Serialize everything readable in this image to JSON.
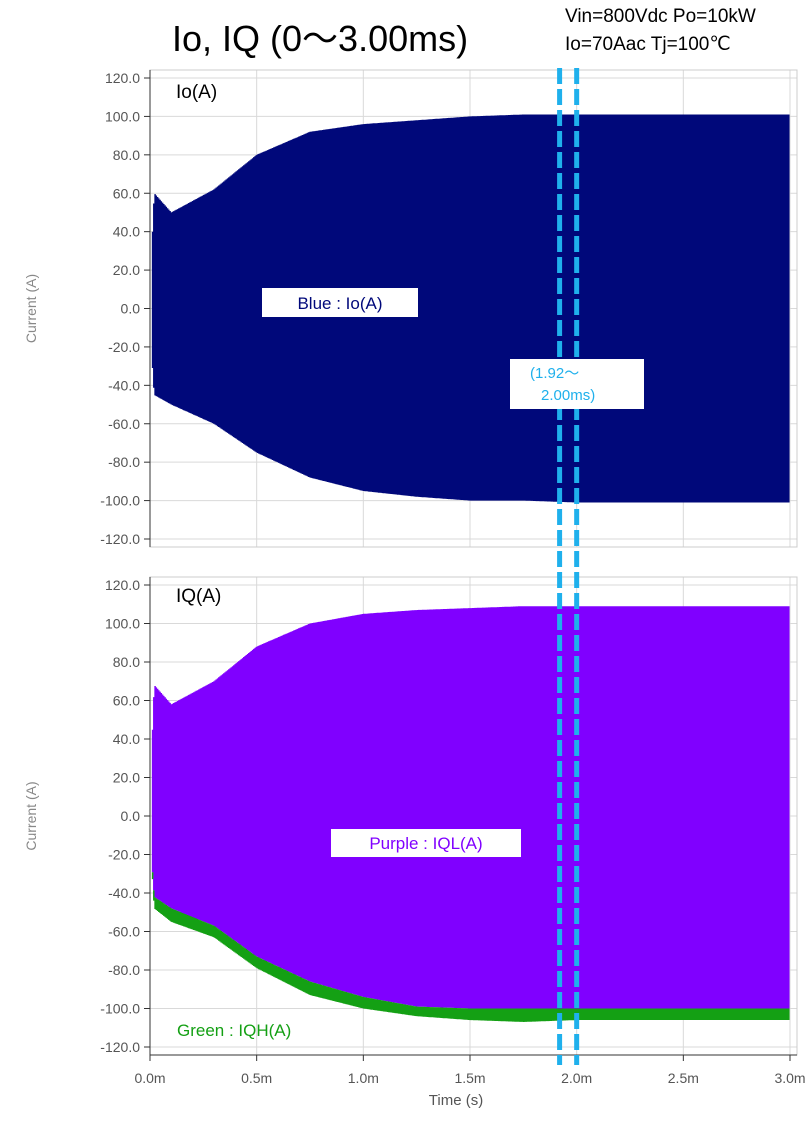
{
  "title": "Io, IQ (0～3.00ms)",
  "conditions": [
    "Vin=800Vdc Po=10kW",
    "Io=70Aac Tj=100℃"
  ],
  "highlight_window": {
    "start_ms": 1.92,
    "end_ms": 2.0,
    "label_line1": "(1.92～",
    "label_line2": "2.00ms)",
    "color": "#1fb0ec"
  },
  "colors": {
    "io": "#00087a",
    "iql": "#8000ff",
    "iqh": "#14a014",
    "axis_text": "#555555",
    "grid": "#d9d9d9"
  },
  "xlabel": "Time (s)",
  "x_ticks": [
    "0.0m",
    "0.5m",
    "1.0m",
    "1.5m",
    "2.0m",
    "2.5m",
    "3.0m"
  ],
  "chart_data": [
    {
      "type": "area",
      "title": "Io(A)",
      "ylabel": "Current (A)",
      "xlim": [
        0,
        3.0
      ],
      "ylim": [
        -120,
        120
      ],
      "y_ticks": [
        "120.0",
        "100.0",
        "80.0",
        "60.0",
        "40.0",
        "20.0",
        "0.0",
        "-20.0",
        "-40.0",
        "-60.0",
        "-80.0",
        "-100.0",
        "-120.0"
      ],
      "legend": "Blue : Io(A)",
      "series": [
        {
          "name": "Io(A)",
          "color": "#00087a",
          "x": [
            0.0,
            0.02,
            0.1,
            0.3,
            0.5,
            0.75,
            1.0,
            1.25,
            1.5,
            1.75,
            2.0,
            2.5,
            3.0
          ],
          "upper": [
            10,
            60,
            50,
            62,
            80,
            92,
            96,
            98,
            100,
            101,
            101,
            101,
            101
          ],
          "lower": [
            -10,
            -45,
            -50,
            -60,
            -75,
            -88,
            -95,
            -98,
            -100,
            -100,
            -101,
            -101,
            -101
          ]
        }
      ]
    },
    {
      "type": "area",
      "title": "IQ(A)",
      "ylabel": "Current (A)",
      "xlim": [
        0,
        3.0
      ],
      "ylim": [
        -120,
        120
      ],
      "y_ticks": [
        "120.0",
        "100.0",
        "80.0",
        "60.0",
        "40.0",
        "20.0",
        "0.0",
        "-20.0",
        "-40.0",
        "-60.0",
        "-80.0",
        "-100.0",
        "-120.0"
      ],
      "legend": [
        "Purple : IQL(A)",
        "Green : IQH(A)"
      ],
      "series": [
        {
          "name": "IQL(A)",
          "color": "#8000ff",
          "x": [
            0.0,
            0.02,
            0.1,
            0.3,
            0.5,
            0.75,
            1.0,
            1.25,
            1.5,
            1.75,
            2.0,
            2.5,
            3.0
          ],
          "upper": [
            10,
            68,
            58,
            70,
            88,
            100,
            105,
            107,
            108,
            109,
            109,
            109,
            109
          ],
          "lower": [
            -10,
            -42,
            -48,
            -57,
            -73,
            -86,
            -94,
            -99,
            -100,
            -100,
            -100,
            -100,
            -100
          ]
        },
        {
          "name": "IQH(A)",
          "color": "#14a014",
          "x": [
            0.0,
            0.02,
            0.1,
            0.3,
            0.5,
            0.75,
            1.0,
            1.25,
            1.5,
            1.75,
            2.0,
            2.5,
            3.0
          ],
          "upper": [
            -10,
            -42,
            -48,
            -57,
            -73,
            -86,
            -94,
            -99,
            -100,
            -100,
            -100,
            -100,
            -100
          ],
          "lower": [
            -10,
            -48,
            -55,
            -63,
            -79,
            -93,
            -100,
            -104,
            -106,
            -107,
            -106,
            -106,
            -106
          ]
        }
      ]
    }
  ]
}
